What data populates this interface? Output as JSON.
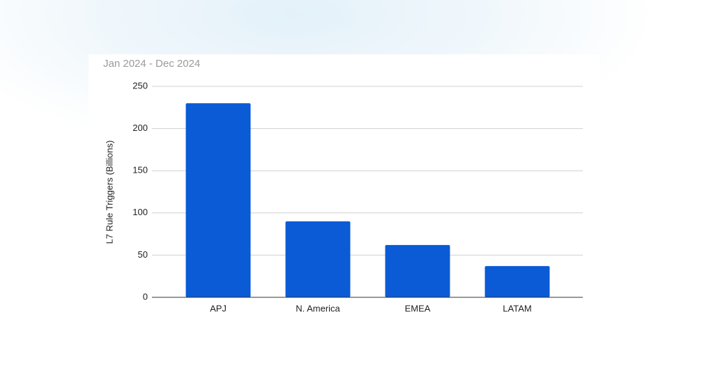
{
  "chart_data": {
    "type": "bar",
    "subtitle": "Jan 2024 - Dec 2024",
    "y_label": "L7 Rule Triggers (Billions)",
    "categories": [
      "APJ",
      "N. America",
      "EMEA",
      "LATAM"
    ],
    "values": [
      230,
      90,
      62,
      37
    ],
    "color": "#0b5ad6",
    "ylim": [
      0,
      250
    ],
    "yticks": [
      0,
      50,
      100,
      150,
      200,
      250
    ],
    "grid": true
  }
}
